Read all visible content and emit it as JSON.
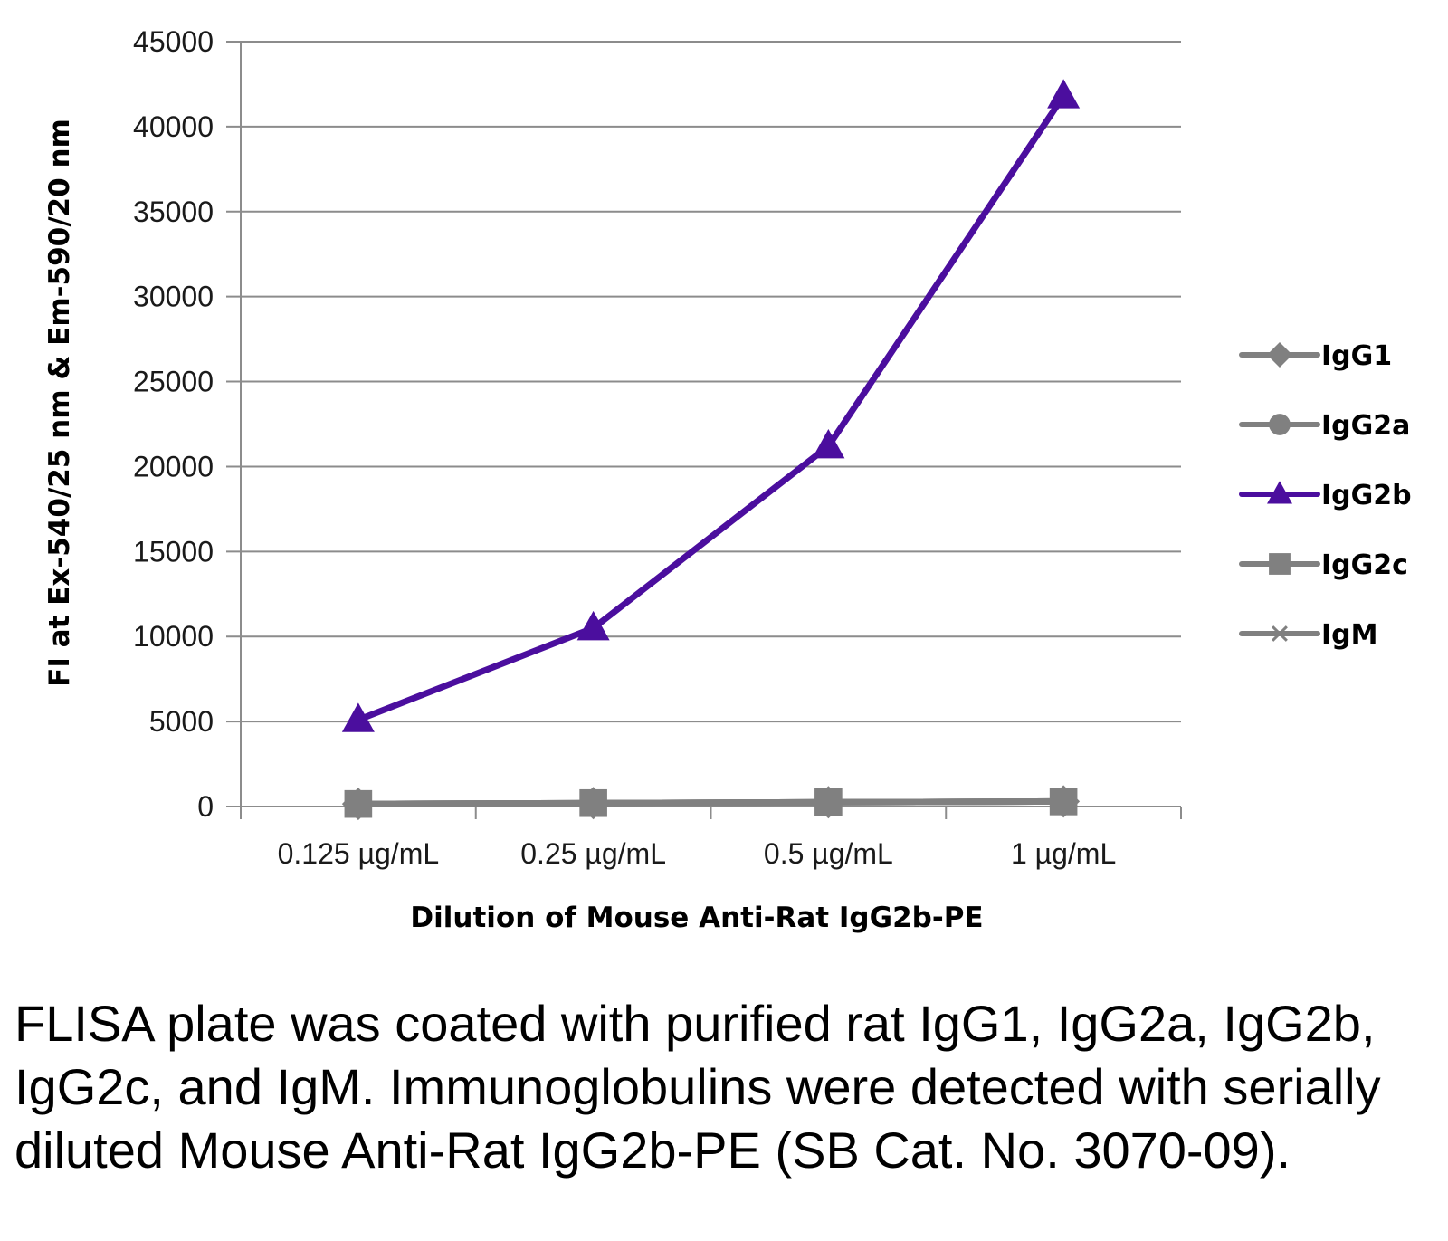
{
  "chart_data": {
    "type": "line",
    "categories": [
      "0.125 µg/mL",
      "0.25 µg/mL",
      "0.5 µg/mL",
      "1 µg/mL"
    ],
    "series": [
      {
        "name": "IgG1",
        "values": [
          150,
          200,
          250,
          300
        ],
        "color": "#808080",
        "marker": "diamond"
      },
      {
        "name": "IgG2a",
        "values": [
          150,
          200,
          250,
          300
        ],
        "color": "#808080",
        "marker": "circle"
      },
      {
        "name": "IgG2b",
        "values": [
          5100,
          10500,
          21200,
          41800
        ],
        "color": "#4b0e9e",
        "marker": "triangle"
      },
      {
        "name": "IgG2c",
        "values": [
          150,
          200,
          250,
          300
        ],
        "color": "#808080",
        "marker": "square"
      },
      {
        "name": "IgM",
        "values": [
          150,
          200,
          250,
          300
        ],
        "color": "#808080",
        "marker": "star"
      }
    ],
    "yticks": [
      "0",
      "5000",
      "10000",
      "15000",
      "20000",
      "25000",
      "30000",
      "35000",
      "40000",
      "45000"
    ],
    "ylim": [
      0,
      45000
    ],
    "ylabel": "FI at Ex-540/25 nm & Em-590/20 nm",
    "xlabel": "Dilution of Mouse Anti-Rat IgG2b-PE",
    "grid": true,
    "legend_position": "right"
  },
  "caption": "FLISA plate was coated with purified rat IgG1, IgG2a, IgG2b, IgG2c, and IgM.  Immunoglobulins were detected with serially diluted Mouse Anti-Rat IgG2b-PE (SB Cat. No. 3070-09)."
}
